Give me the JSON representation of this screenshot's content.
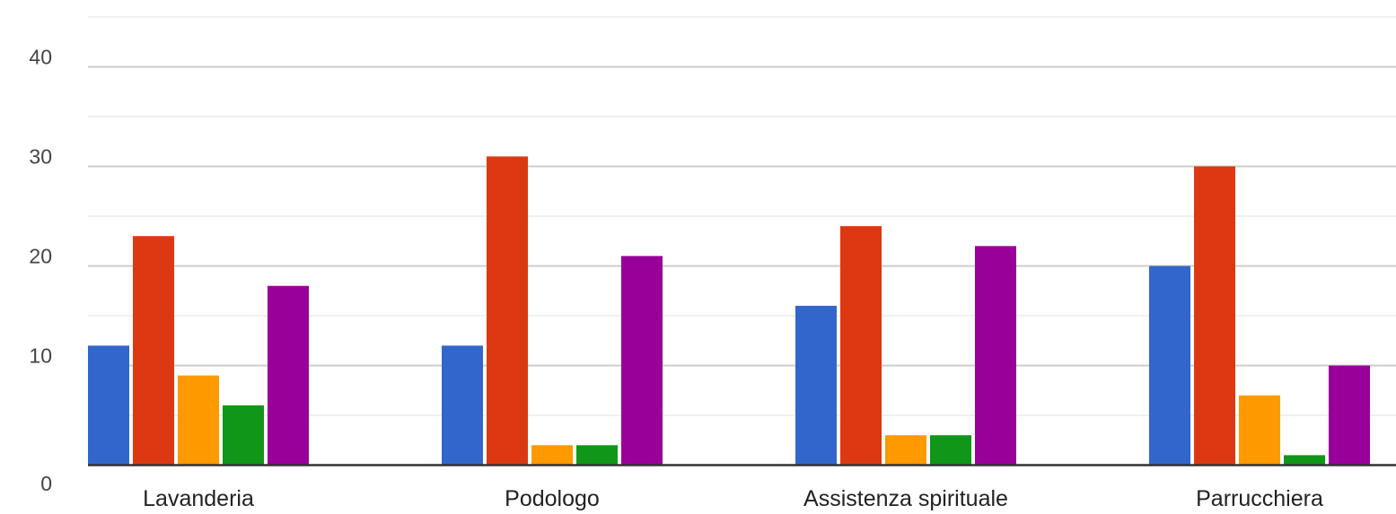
{
  "chart_data": {
    "type": "bar",
    "title": "",
    "xlabel": "",
    "ylabel": "",
    "categories": [
      "Lavanderia",
      "Podologo",
      "Assistenza spirituale",
      "Parrucchiera"
    ],
    "series": [
      {
        "color": "#3366cc",
        "values": [
          12,
          12,
          16,
          20
        ]
      },
      {
        "color": "#dc3912",
        "values": [
          23,
          31,
          24,
          30
        ]
      },
      {
        "color": "#ff9900",
        "values": [
          9,
          2,
          3,
          7
        ]
      },
      {
        "color": "#109618",
        "values": [
          6,
          2,
          3,
          1
        ]
      },
      {
        "color": "#990099",
        "values": [
          18,
          21,
          22,
          10
        ]
      }
    ],
    "ylim": [
      0,
      45
    ],
    "yticks": [
      0,
      10,
      20,
      30,
      40
    ],
    "ytick_labels": [
      "0",
      "10",
      "20",
      "30",
      "40"
    ],
    "grid": true,
    "legend": "none"
  }
}
